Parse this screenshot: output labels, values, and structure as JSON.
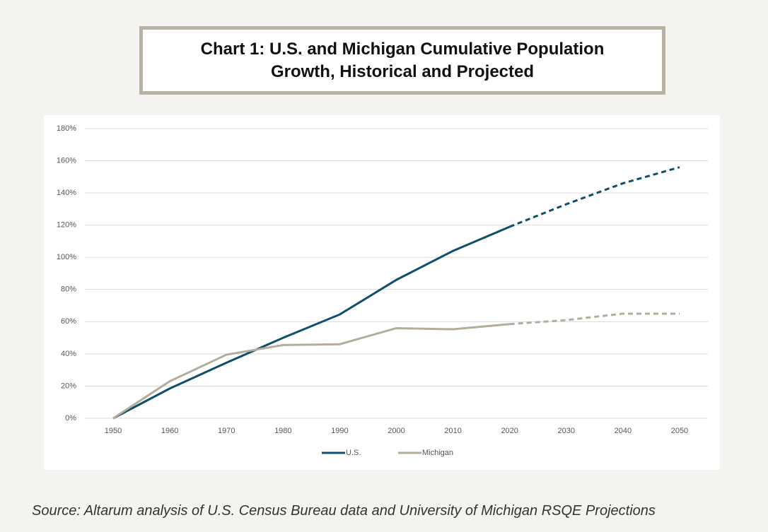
{
  "chart_data": {
    "type": "line",
    "title": "Chart 1: U.S. and Michigan Cumulative Population Growth, Historical and Projected",
    "source": "Source: Altarum analysis of U.S. Census Bureau data and University of Michigan RSQE Projections",
    "x": [
      1950,
      1960,
      1970,
      1980,
      1990,
      2000,
      2010,
      2020,
      2030,
      2040,
      2050
    ],
    "projected_from": 2020,
    "series": [
      {
        "name": "U.S.",
        "color": "#0e4f6e",
        "values": [
          0,
          18.5,
          34.5,
          50,
          64.5,
          86,
          104,
          119,
          133,
          146,
          156
        ]
      },
      {
        "name": "Michigan",
        "color": "#b5ad9c",
        "values": [
          0,
          23,
          39.5,
          45.5,
          46,
          56,
          55.3,
          58.5,
          61,
          65,
          65
        ]
      }
    ],
    "xlim": [
      1945,
      2055
    ],
    "xticks": [
      1950,
      1960,
      1970,
      1980,
      1990,
      2000,
      2010,
      2020,
      2030,
      2040,
      2050
    ],
    "ylim": [
      0,
      180
    ],
    "yticks": [
      {
        "value": 0,
        "label": "0%"
      },
      {
        "value": 20,
        "label": "20%"
      },
      {
        "value": 40,
        "label": "40%"
      },
      {
        "value": 60,
        "label": "60%"
      },
      {
        "value": 80,
        "label": "80%"
      },
      {
        "value": 100,
        "label": "100%"
      },
      {
        "value": 120,
        "label": "120%"
      },
      {
        "value": 140,
        "label": "140%"
      },
      {
        "value": 160,
        "label": "160%"
      },
      {
        "value": 180,
        "label": "180%"
      }
    ],
    "grid": true,
    "legend": "bottom"
  }
}
